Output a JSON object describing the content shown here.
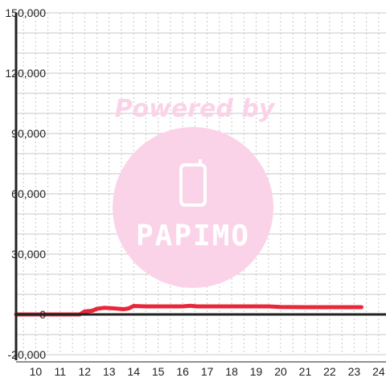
{
  "chart_data": {
    "type": "line",
    "title": "",
    "xlabel": "",
    "ylabel": "",
    "xlim": [
      9.2,
      24.3
    ],
    "ylim": [
      -20000,
      150000
    ],
    "x_ticks": [
      "10",
      "11",
      "12",
      "13",
      "14",
      "15",
      "16",
      "17",
      "18",
      "19",
      "20",
      "21",
      "22",
      "23",
      "24"
    ],
    "y_ticks": [
      "150,000",
      "120,000",
      "90,000",
      "60,000",
      "30,000",
      "0",
      "-20,000"
    ],
    "y_tick_values": [
      150000,
      120000,
      90000,
      60000,
      30000,
      0,
      -20000
    ],
    "x_tick_values": [
      10,
      11,
      12,
      13,
      14,
      15,
      16,
      17,
      18,
      19,
      20,
      21,
      22,
      23,
      24
    ],
    "horizontal_gridlines": [
      150000,
      140000,
      130000,
      120000,
      110000,
      100000,
      90000,
      80000,
      70000,
      60000,
      50000,
      40000,
      30000,
      20000,
      10000,
      -10000,
      -20000
    ],
    "grid": true,
    "series": [
      {
        "color": "#e8283a",
        "x": [
          9.2,
          10,
          11,
          11.5,
          11.8,
          12.0,
          12.3,
          12.5,
          12.8,
          13.2,
          13.6,
          13.8,
          14.0,
          14.5,
          15.0,
          15.5,
          16.0,
          16.3,
          16.6,
          17.0,
          18.0,
          19.0,
          19.5,
          20.0,
          21.0,
          22.0,
          23.0,
          23.3
        ],
        "y": [
          0,
          0,
          0,
          0,
          0,
          1500,
          1800,
          2800,
          3300,
          3000,
          2600,
          3000,
          4200,
          4000,
          4000,
          4000,
          4000,
          4300,
          4000,
          4000,
          4000,
          4000,
          4000,
          3700,
          3600,
          3600,
          3600,
          3600
        ]
      }
    ]
  },
  "watermark": {
    "text": "Powered by",
    "logo": "PAPIMO"
  }
}
